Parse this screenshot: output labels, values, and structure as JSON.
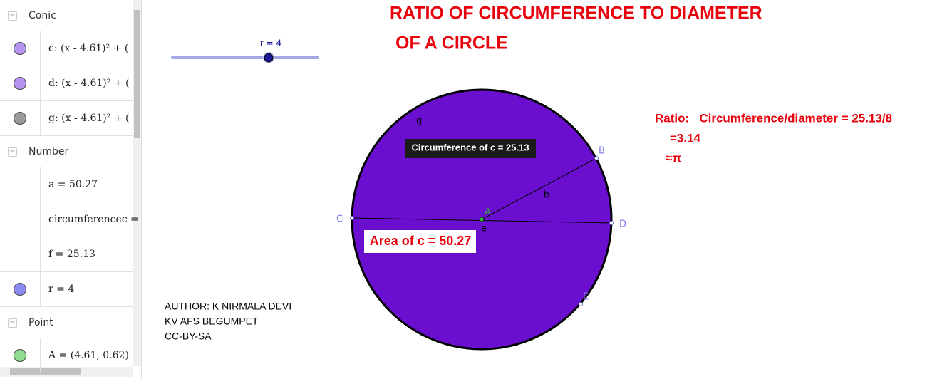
{
  "algebra_view": {
    "groups": [
      {
        "title": "Conic",
        "items": [
          "c: (x - 4.61)² + (",
          "d: (x - 4.61)² + (",
          "g: (x - 4.61)² + ("
        ]
      },
      {
        "title": "Number",
        "items": [
          "a = 50.27",
          "circumferencec =",
          "f = 25.13",
          "r = 4"
        ]
      },
      {
        "title": "Point",
        "items": [
          "A = (4.61, 0.62)"
        ]
      }
    ]
  },
  "graphics_view": {
    "slider_label": "r = 4",
    "title": [
      "RATIO OF CIRCUMFERENCE TO DIAMETER",
      "OF A CIRCLE"
    ],
    "ratio_text": [
      "Ratio:   Circumference/diameter = 25.13/8",
      "=3.14",
      "≈π"
    ],
    "circumference_label": "Circumference of c = 25.13",
    "area_label": "Area of c = 50.27",
    "point_labels": {
      "g": "g",
      "B": "B",
      "b": "b",
      "C": "C",
      "A": "A",
      "e": "e",
      "D": "D",
      "E": "E"
    },
    "author": [
      "AUTHOR: K NIRMALA DEVI",
      "KV AFS BEGUMPET",
      "CC-BY-SA"
    ]
  }
}
